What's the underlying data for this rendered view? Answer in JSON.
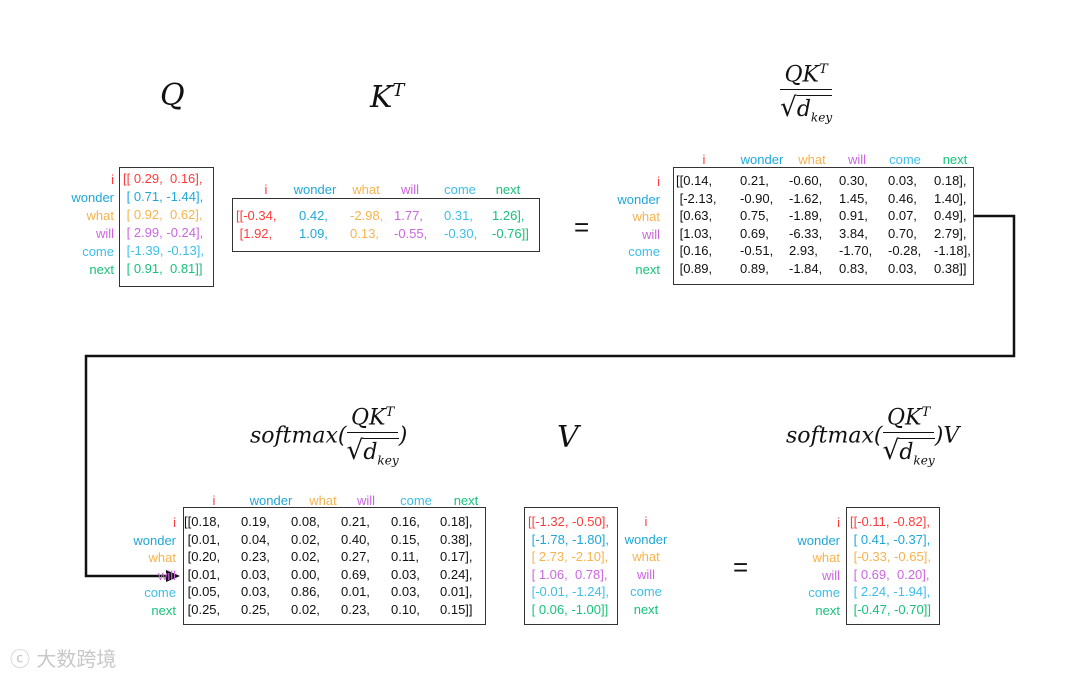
{
  "tokens": [
    "i",
    "wonder",
    "what",
    "will",
    "come",
    "next"
  ],
  "token_colors": [
    "#ff3b3b",
    "#1fa7d8",
    "#f7b34c",
    "#cc66e0",
    "#3dbfe8",
    "#17c27a"
  ],
  "formulas": {
    "q": "Q",
    "kt_base": "K",
    "kt_sup": "T",
    "scaled_num": "QK",
    "scaled_sup": "T",
    "sqrt": "√",
    "d_base": "d",
    "d_sub": "key",
    "softmax_prefix": "softmax(",
    "softmax_suffix": ")",
    "v": "V",
    "out_suffix": ")V"
  },
  "equals": "=",
  "Q": {
    "open": "[[",
    "rows": [
      [
        "0.29",
        "0.16"
      ],
      [
        "0.71",
        "-1.44"
      ],
      [
        "0.92",
        "0.62"
      ],
      [
        "2.99",
        "-0.24"
      ],
      [
        "-1.39",
        "-0.13"
      ],
      [
        "0.91",
        "0.81"
      ]
    ]
  },
  "KT": {
    "rows": [
      [
        "-0.34",
        "0.42",
        "-2.98",
        "1.77",
        "0.31",
        "1.26"
      ],
      [
        "1.92",
        "1.09",
        "0.13",
        "-0.55",
        "-0.30",
        "-0.76"
      ]
    ]
  },
  "scores": {
    "rows": [
      [
        "0.14",
        "0.21",
        "-0.60",
        "0.30",
        "0.03",
        "0.18"
      ],
      [
        "-2.13",
        "-0.90",
        "-1.62",
        "1.45",
        "0.46",
        "1.40"
      ],
      [
        "0.63",
        "0.75",
        "-1.89",
        "0.91",
        "0.07",
        "0.49"
      ],
      [
        "1.03",
        "0.69",
        "-6.33",
        "3.84",
        "0.70",
        "2.79"
      ],
      [
        "0.16",
        "-0.51",
        "2.93",
        "-1.70",
        "-0.28",
        "-1.18"
      ],
      [
        "0.89",
        "0.89",
        "-1.84",
        "0.83",
        "0.03",
        "0.38"
      ]
    ]
  },
  "softmax": {
    "rows": [
      [
        "0.18",
        "0.19",
        "0.08",
        "0.21",
        "0.16",
        "0.18"
      ],
      [
        "0.01",
        "0.04",
        "0.02",
        "0.40",
        "0.15",
        "0.38"
      ],
      [
        "0.20",
        "0.23",
        "0.02",
        "0.27",
        "0.11",
        "0.17"
      ],
      [
        "0.01",
        "0.03",
        "0.00",
        "0.69",
        "0.03",
        "0.24"
      ],
      [
        "0.05",
        "0.03",
        "0.86",
        "0.01",
        "0.03",
        "0.01"
      ],
      [
        "0.25",
        "0.25",
        "0.02",
        "0.23",
        "0.10",
        "0.15"
      ]
    ]
  },
  "V": {
    "rows": [
      [
        "-1.32",
        "-0.50"
      ],
      [
        "-1.78",
        "-1.80"
      ],
      [
        "2.73",
        "-2.10"
      ],
      [
        "1.06",
        "0.78"
      ],
      [
        "-0.01",
        "-1.24"
      ],
      [
        "0.06",
        "-1.00"
      ]
    ]
  },
  "output": {
    "rows": [
      [
        "-0.11",
        "-0.82"
      ],
      [
        "0.41",
        "-0.37"
      ],
      [
        "-0.33",
        "-0.65"
      ],
      [
        "0.69",
        "0.20"
      ],
      [
        "2.24",
        "-1.94"
      ],
      [
        "-0.47",
        "-0.70"
      ]
    ]
  },
  "watermark": "大数跨境"
}
